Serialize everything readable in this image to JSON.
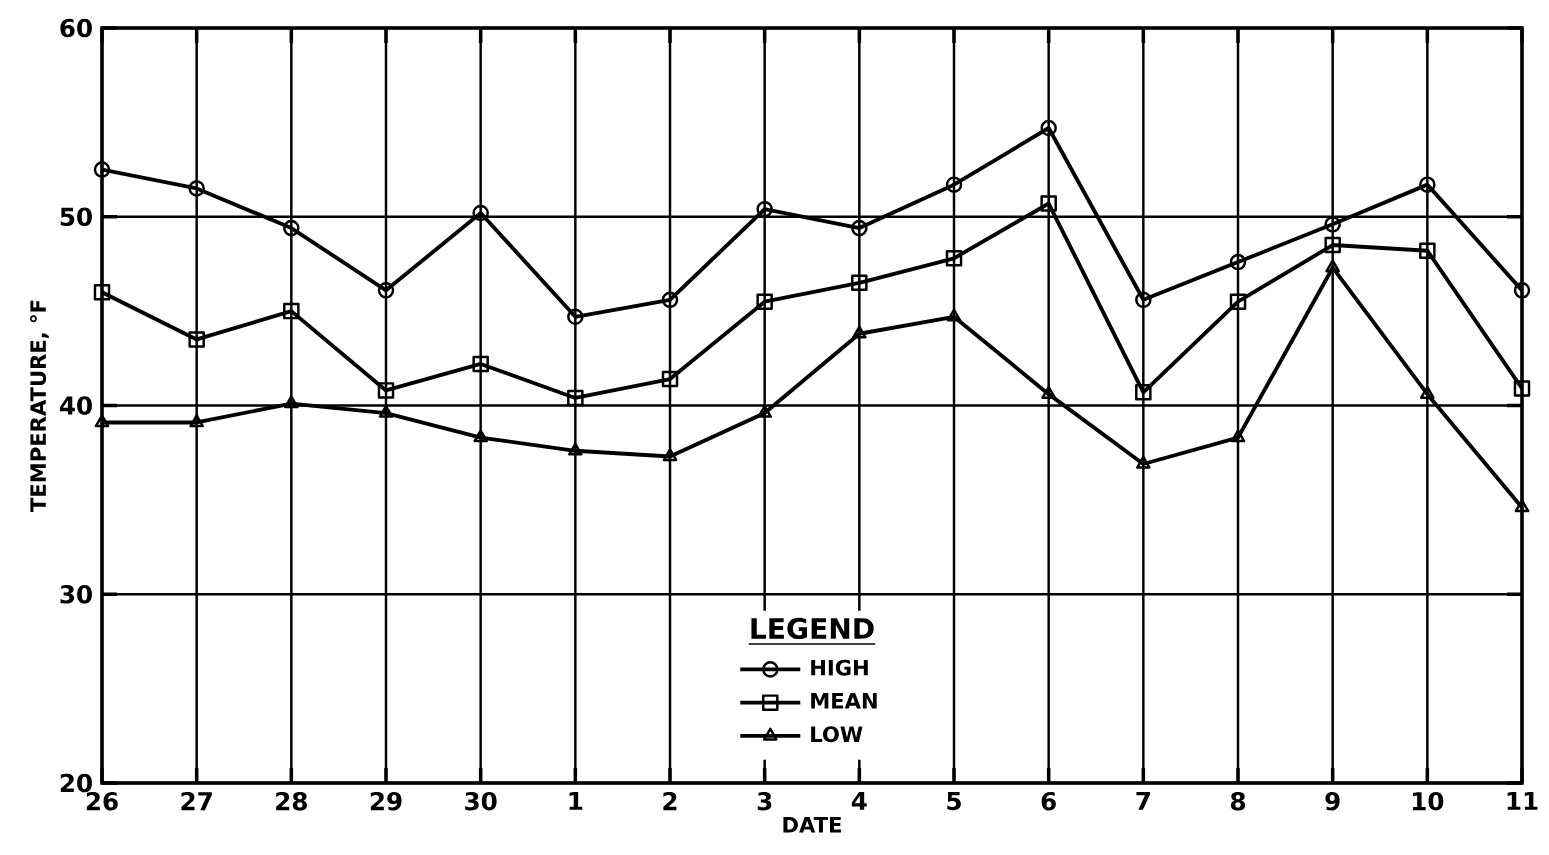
{
  "chart_data": {
    "type": "line",
    "xlabel": "DATE",
    "ylabel": "TEMPERATURE, °F",
    "legend_title": "LEGEND",
    "legend": "bottom",
    "grid": true,
    "line_style": "solid",
    "categories": [
      "26",
      "27",
      "28",
      "29",
      "30",
      "1",
      "2",
      "3",
      "4",
      "5",
      "6",
      "7",
      "8",
      "9",
      "10",
      "11"
    ],
    "ylim": [
      20,
      60
    ],
    "yticks": [
      20,
      30,
      40,
      50,
      60
    ],
    "series": [
      {
        "name": "HIGH",
        "color": "#000000",
        "marker": "circle",
        "values": [
          52.5,
          51.5,
          49.4,
          46.1,
          50.2,
          44.7,
          45.6,
          50.4,
          49.4,
          51.7,
          54.7,
          45.6,
          47.6,
          49.6,
          51.7,
          46.1
        ]
      },
      {
        "name": "MEAN",
        "color": "#000000",
        "marker": "square",
        "values": [
          46.0,
          43.5,
          45.0,
          40.8,
          42.2,
          40.4,
          41.4,
          45.5,
          46.5,
          47.8,
          50.7,
          40.7,
          45.5,
          48.5,
          48.2,
          40.9
        ]
      },
      {
        "name": "LOW",
        "color": "#000000",
        "marker": "triangle",
        "values": [
          39.1,
          39.1,
          40.1,
          39.6,
          38.3,
          37.6,
          37.3,
          39.6,
          43.8,
          44.7,
          40.6,
          36.9,
          38.3,
          47.3,
          40.6,
          34.6
        ]
      }
    ]
  }
}
